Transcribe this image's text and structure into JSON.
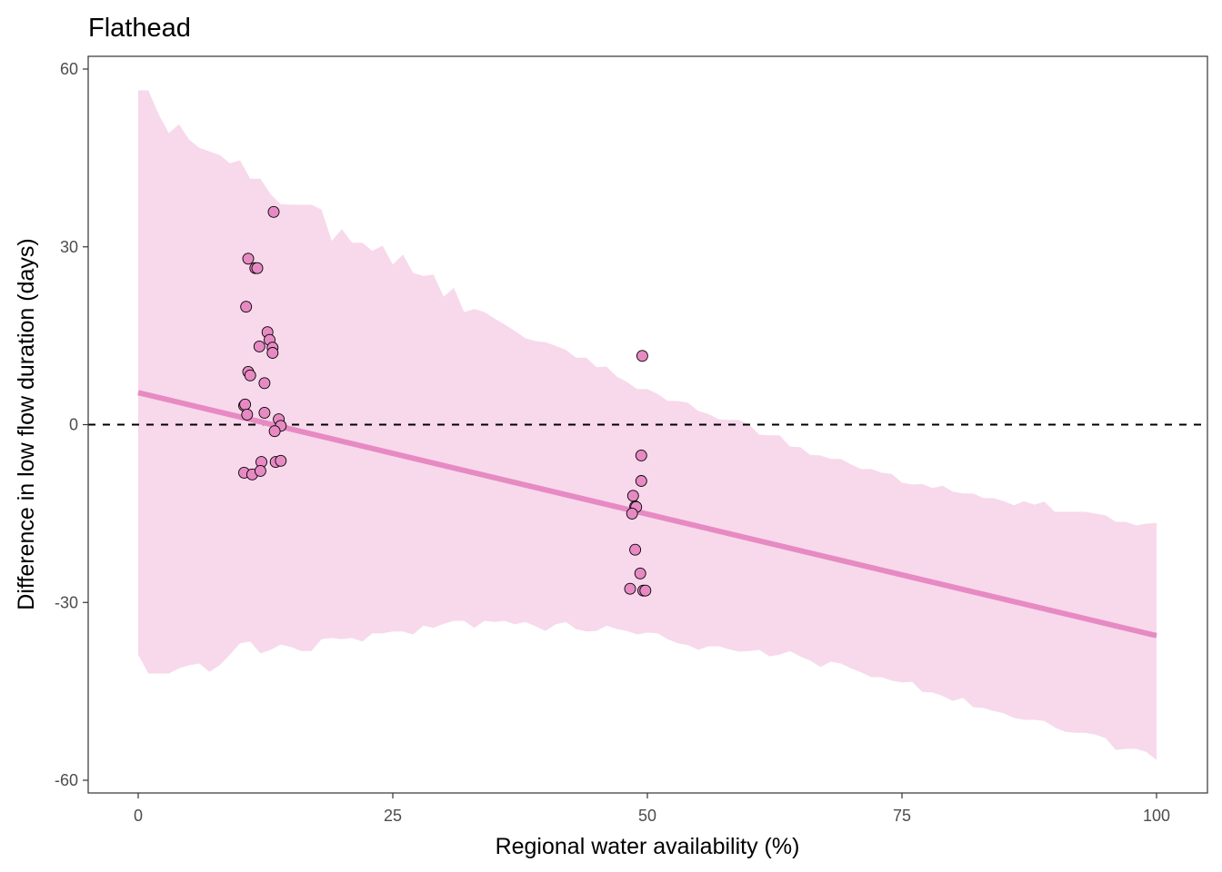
{
  "chart_data": {
    "type": "scatter",
    "title": "Flathead",
    "xlabel": "Regional water availability (%)",
    "ylabel": "Difference in low flow duration (days)",
    "xlim": [
      -5,
      105
    ],
    "ylim": [
      -62,
      62
    ],
    "x_ticks": [
      0,
      25,
      50,
      75,
      100
    ],
    "x_tick_labels": [
      "0",
      "25",
      "50",
      "75",
      "100"
    ],
    "y_ticks": [
      -60,
      -30,
      0,
      30,
      60
    ],
    "y_tick_labels": [
      "-60",
      "-30",
      "0",
      "30",
      "60"
    ],
    "grid": false,
    "legend": "none",
    "colors": {
      "ribbon": "#f7d9eb",
      "line": "#e78ac3",
      "points_fill": "#e78ac3",
      "points_stroke": "#000000",
      "reference_line": "#000000",
      "panel_border": "#333333"
    },
    "reference_line": {
      "y": 0,
      "style": "dashed"
    },
    "fit_line": {
      "x": [
        0,
        100
      ],
      "y": [
        5.4,
        -35.6
      ]
    },
    "ribbon": {
      "x": [
        0,
        1,
        2,
        3,
        4,
        5,
        6,
        7,
        8,
        9,
        10,
        11,
        12,
        13,
        14,
        15,
        16,
        17,
        18,
        19,
        20,
        21,
        22,
        23,
        24,
        25,
        26,
        27,
        28,
        29,
        30,
        31,
        32,
        33,
        34,
        35,
        36,
        37,
        38,
        39,
        40,
        41,
        42,
        43,
        44,
        45,
        46,
        47,
        48,
        49,
        50,
        51,
        52,
        53,
        54,
        55,
        56,
        57,
        58,
        59,
        60,
        61,
        62,
        63,
        64,
        65,
        66,
        67,
        68,
        69,
        70,
        71,
        72,
        73,
        74,
        75,
        76,
        77,
        78,
        79,
        80,
        81,
        82,
        83,
        84,
        85,
        86,
        87,
        88,
        89,
        90,
        91,
        92,
        93,
        94,
        95,
        96,
        97,
        98,
        99,
        100
      ],
      "upper": [
        56.4,
        56.4,
        52.4,
        49.2,
        50.7,
        48.1,
        46.7,
        46.1,
        45.5,
        44.1,
        44.6,
        41.5,
        41.5,
        38.9,
        37.2,
        37.1,
        37.1,
        37.1,
        36.3,
        31.0,
        33.0,
        30.7,
        30.7,
        29.3,
        30.2,
        27.0,
        28.7,
        25.6,
        25.1,
        25.3,
        21.6,
        23.1,
        19.0,
        19.5,
        19.0,
        17.9,
        16.9,
        15.8,
        14.6,
        14.1,
        13.9,
        13.3,
        12.6,
        11.3,
        11.3,
        9.7,
        9.8,
        8.1,
        7.2,
        6.0,
        6.0,
        5.2,
        4.0,
        4.0,
        3.7,
        2.3,
        1.8,
        0.9,
        0.8,
        0.8,
        0.0,
        -1.7,
        -1.8,
        -1.8,
        -3.7,
        -3.8,
        -5.1,
        -5.2,
        -5.8,
        -5.8,
        -6.7,
        -7.5,
        -7.5,
        -8.1,
        -8.3,
        -9.8,
        -10.1,
        -10.0,
        -10.7,
        -10.3,
        -11.3,
        -11.6,
        -11.6,
        -12.4,
        -12.4,
        -12.9,
        -13.6,
        -12.9,
        -13.5,
        -13.0,
        -14.7,
        -14.7,
        -14.7,
        -14.7,
        -15.0,
        -15.3,
        -16.4,
        -16.4,
        -17.0,
        -16.7,
        -16.6
      ],
      "lower": [
        -38.8,
        -42.0,
        -42.0,
        -42.0,
        -41.1,
        -40.6,
        -40.3,
        -41.7,
        -40.6,
        -38.8,
        -36.9,
        -36.6,
        -38.6,
        -38.0,
        -37.1,
        -37.5,
        -38.2,
        -38.2,
        -36.2,
        -36.0,
        -36.2,
        -36.0,
        -36.6,
        -35.2,
        -35.2,
        -34.9,
        -34.9,
        -35.4,
        -33.9,
        -34.3,
        -33.6,
        -33.1,
        -33.1,
        -34.3,
        -33.1,
        -33.3,
        -33.1,
        -33.7,
        -33.3,
        -34.0,
        -34.8,
        -33.7,
        -33.3,
        -34.5,
        -34.9,
        -34.8,
        -33.9,
        -34.5,
        -34.8,
        -35.4,
        -35.1,
        -35.2,
        -36.2,
        -36.9,
        -37.2,
        -38.0,
        -37.4,
        -37.4,
        -37.9,
        -38.3,
        -38.2,
        -38.0,
        -39.1,
        -38.8,
        -38.2,
        -39.1,
        -39.8,
        -40.9,
        -40.0,
        -40.3,
        -41.1,
        -41.8,
        -42.6,
        -42.6,
        -43.2,
        -43.5,
        -43.4,
        -45.1,
        -45.2,
        -45.8,
        -46.6,
        -46.1,
        -47.7,
        -47.8,
        -48.3,
        -48.7,
        -49.5,
        -49.8,
        -49.8,
        -50.0,
        -51.1,
        -51.8,
        -52.0,
        -52.0,
        -52.3,
        -52.9,
        -54.9,
        -54.7,
        -54.7,
        -55.2,
        -56.6
      ]
    },
    "points": {
      "x": [
        13.3,
        10.8,
        11.5,
        11.7,
        10.6,
        12.7,
        12.9,
        11.9,
        13.2,
        13.2,
        10.8,
        11.0,
        12.4,
        10.4,
        10.5,
        10.7,
        12.4,
        13.8,
        14.0,
        13.4,
        12.1,
        13.5,
        14.0,
        10.4,
        11.2,
        12.0,
        49.5,
        49.4,
        49.4,
        48.6,
        48.8,
        48.9,
        48.5,
        48.8,
        49.3,
        48.3,
        49.6,
        49.8
      ],
      "y": [
        35.9,
        28.0,
        26.4,
        26.4,
        19.9,
        15.6,
        14.3,
        13.2,
        13.0,
        12.1,
        8.9,
        8.3,
        7.0,
        3.2,
        3.4,
        1.7,
        2.0,
        0.9,
        -0.2,
        -1.1,
        -6.3,
        -6.3,
        -6.1,
        -8.1,
        -8.4,
        -7.8,
        11.6,
        -5.2,
        -9.5,
        -12.0,
        -13.8,
        -13.9,
        -15.0,
        -21.1,
        -25.1,
        -27.7,
        -28.0,
        -28.0
      ]
    }
  }
}
